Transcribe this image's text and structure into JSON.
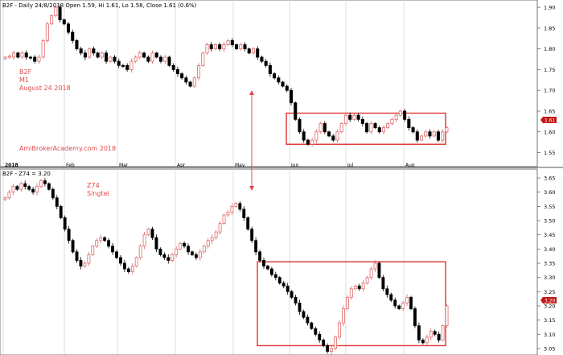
{
  "chart_data": [
    {
      "type": "candlestick",
      "panel": "top",
      "header": "B2F - Daily 24/8/2018 Open 1.59, Hi 1.61, Lo 1.58, Close 1.61 (0.6%)",
      "annotations": [
        "B2F",
        "M1",
        "August 24 2018",
        "AmiBrokerAcademy.com   2018"
      ],
      "price_tag": "1.61",
      "ylim": [
        1.52,
        1.91
      ],
      "y_ticks": [
        "1.55",
        "1.60",
        "1.65",
        "1.70",
        "1.75",
        "1.80",
        "1.85",
        "1.90"
      ],
      "x_ticks": [
        "2018",
        "Feb",
        "Mar",
        "Apr",
        "May",
        "Jun",
        "Jul",
        "Aug"
      ],
      "highlight_box": {
        "from": "Jun",
        "to": "end of Aug",
        "low": 1.57,
        "high": 1.645
      },
      "series": [
        {
          "name": "B2F",
          "close_path": [
            1.78,
            1.78,
            1.79,
            1.78,
            1.79,
            1.78,
            1.78,
            1.77,
            1.78,
            1.82,
            1.86,
            1.88,
            1.9,
            1.87,
            1.86,
            1.84,
            1.82,
            1.8,
            1.79,
            1.78,
            1.8,
            1.79,
            1.78,
            1.79,
            1.77,
            1.78,
            1.77,
            1.76,
            1.76,
            1.75,
            1.77,
            1.78,
            1.79,
            1.78,
            1.77,
            1.79,
            1.78,
            1.77,
            1.78,
            1.76,
            1.75,
            1.74,
            1.73,
            1.72,
            1.71,
            1.73,
            1.76,
            1.79,
            1.81,
            1.8,
            1.81,
            1.8,
            1.81,
            1.82,
            1.81,
            1.8,
            1.81,
            1.8,
            1.79,
            1.8,
            1.78,
            1.77,
            1.76,
            1.74,
            1.73,
            1.72,
            1.71,
            1.7,
            1.67,
            1.63,
            1.6,
            1.58,
            1.57,
            1.58,
            1.6,
            1.62,
            1.6,
            1.59,
            1.58,
            1.6,
            1.62,
            1.64,
            1.63,
            1.64,
            1.63,
            1.62,
            1.6,
            1.62,
            1.61,
            1.6,
            1.61,
            1.62,
            1.63,
            1.64,
            1.65,
            1.63,
            1.61,
            1.6,
            1.58,
            1.59,
            1.6,
            1.59,
            1.6,
            1.58,
            1.6,
            1.61
          ]
        }
      ]
    },
    {
      "type": "candlestick",
      "panel": "bottom",
      "header": "B2F - Z74 = 3.20",
      "annotations": [
        "Z74",
        "Singtel"
      ],
      "price_tag": "3.20",
      "ylim": [
        3.03,
        3.67
      ],
      "y_ticks": [
        "3.05",
        "3.10",
        "3.15",
        "3.20",
        "3.25",
        "3.30",
        "3.35",
        "3.40",
        "3.45",
        "3.50",
        "3.55",
        "3.60",
        "3.65"
      ],
      "highlight_box": {
        "from": "late May",
        "to": "end of Aug",
        "low": 3.06,
        "high": 3.355
      },
      "series": [
        {
          "name": "Z74",
          "close_path": [
            3.58,
            3.6,
            3.62,
            3.61,
            3.63,
            3.62,
            3.61,
            3.6,
            3.62,
            3.64,
            3.63,
            3.61,
            3.58,
            3.55,
            3.51,
            3.47,
            3.43,
            3.39,
            3.36,
            3.34,
            3.35,
            3.38,
            3.41,
            3.43,
            3.44,
            3.43,
            3.41,
            3.39,
            3.37,
            3.35,
            3.33,
            3.32,
            3.34,
            3.37,
            3.41,
            3.45,
            3.47,
            3.44,
            3.4,
            3.38,
            3.37,
            3.36,
            3.38,
            3.4,
            3.42,
            3.41,
            3.39,
            3.38,
            3.37,
            3.39,
            3.41,
            3.43,
            3.44,
            3.46,
            3.49,
            3.52,
            3.53,
            3.55,
            3.56,
            3.54,
            3.51,
            3.47,
            3.43,
            3.39,
            3.36,
            3.34,
            3.33,
            3.31,
            3.3,
            3.28,
            3.27,
            3.25,
            3.23,
            3.21,
            3.18,
            3.16,
            3.14,
            3.12,
            3.1,
            3.08,
            3.06,
            3.04,
            3.05,
            3.09,
            3.14,
            3.19,
            3.23,
            3.26,
            3.27,
            3.26,
            3.28,
            3.3,
            3.33,
            3.35,
            3.3,
            3.26,
            3.24,
            3.22,
            3.2,
            3.19,
            3.21,
            3.23,
            3.19,
            3.13,
            3.08,
            3.07,
            3.09,
            3.11,
            3.1,
            3.08,
            3.13,
            3.2
          ]
        }
      ]
    }
  ],
  "colors": {
    "up_candle": "#e06a6a",
    "down_candle": "#000000",
    "annotation": "#e04a4a",
    "box": "#e03030",
    "tag": "#c01818",
    "grid": "#cfcfcf"
  }
}
